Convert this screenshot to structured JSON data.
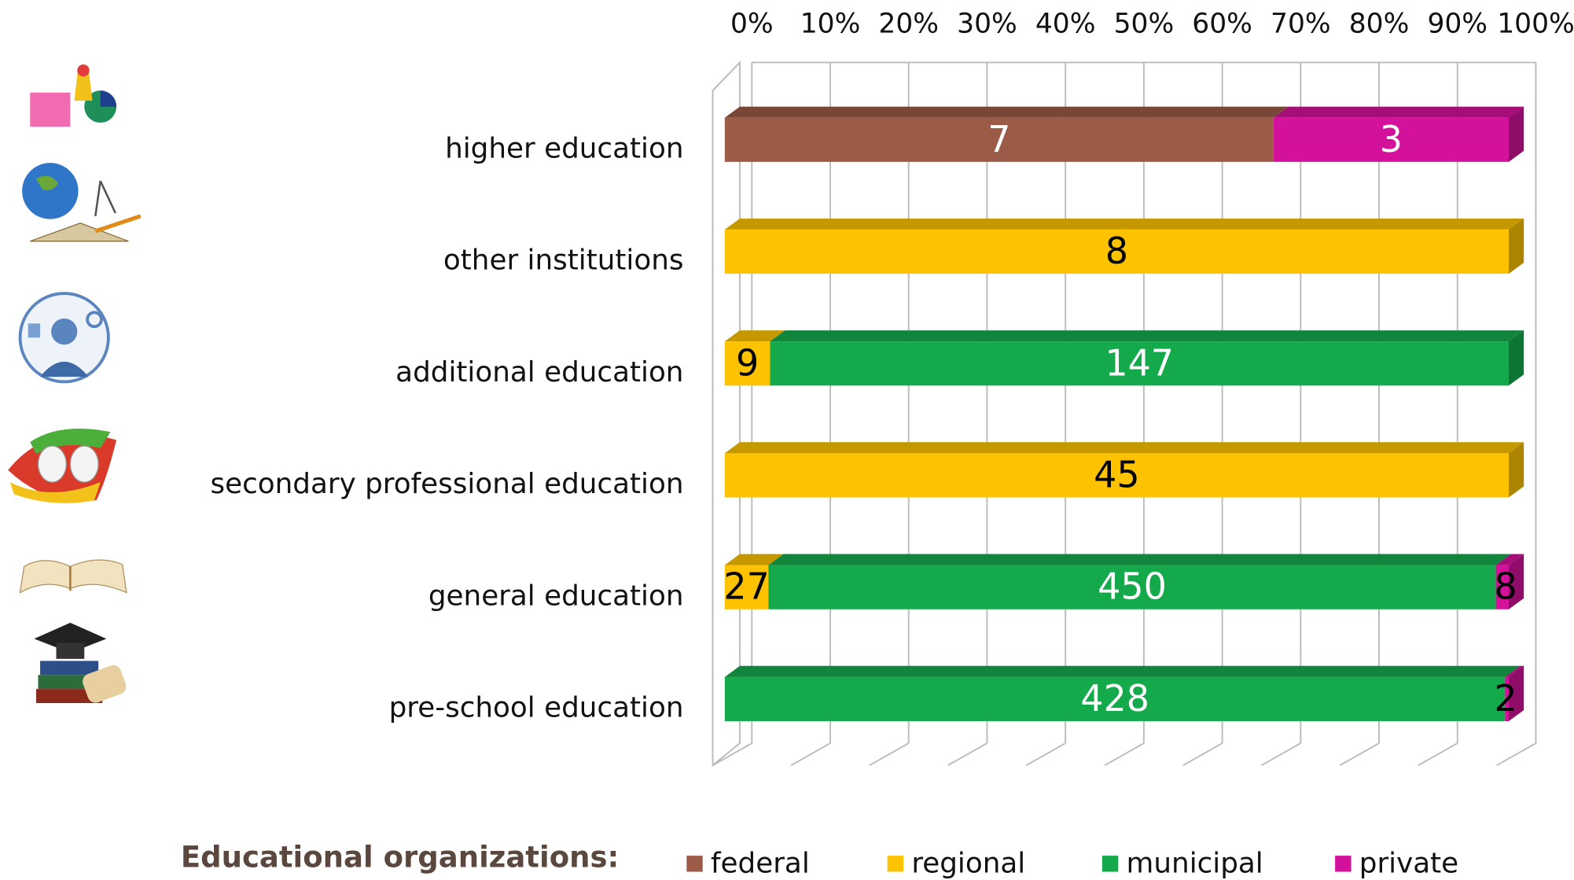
{
  "chart_data": {
    "type": "stacked-bar-3d",
    "orientation": "horizontal",
    "categories": [
      "higher education",
      "other institutions",
      "additional education",
      "secondary professional education",
      "general education",
      "pre-school education"
    ],
    "series": [
      {
        "name": "federal",
        "color": "#9b5b47",
        "values": [
          7,
          null,
          null,
          null,
          null,
          null
        ]
      },
      {
        "name": "regional",
        "color": "#fdc300",
        "values": [
          null,
          8,
          9,
          45,
          27,
          null
        ]
      },
      {
        "name": "municipal",
        "color": "#14aa4b",
        "values": [
          null,
          null,
          147,
          null,
          450,
          428
        ]
      },
      {
        "name": "private",
        "color": "#d4119b",
        "values": [
          3,
          null,
          null,
          null,
          8,
          2
        ]
      }
    ],
    "xlim": [
      0,
      100
    ],
    "xticks": [
      {
        "value": 0,
        "label": "0%"
      },
      {
        "value": 10,
        "label": "10%"
      },
      {
        "value": 20,
        "label": "20%"
      },
      {
        "value": 30,
        "label": "30%"
      },
      {
        "value": 40,
        "label": "40%"
      },
      {
        "value": 50,
        "label": "50%"
      },
      {
        "value": 60,
        "label": "60%"
      },
      {
        "value": 70,
        "label": "70%"
      },
      {
        "value": 80,
        "label": "80%"
      },
      {
        "value": 90,
        "label": "90%"
      },
      {
        "value": 100,
        "label": "100%"
      }
    ],
    "grid": true,
    "legend_title": "Educational organizations:",
    "legend_position": "bottom"
  }
}
